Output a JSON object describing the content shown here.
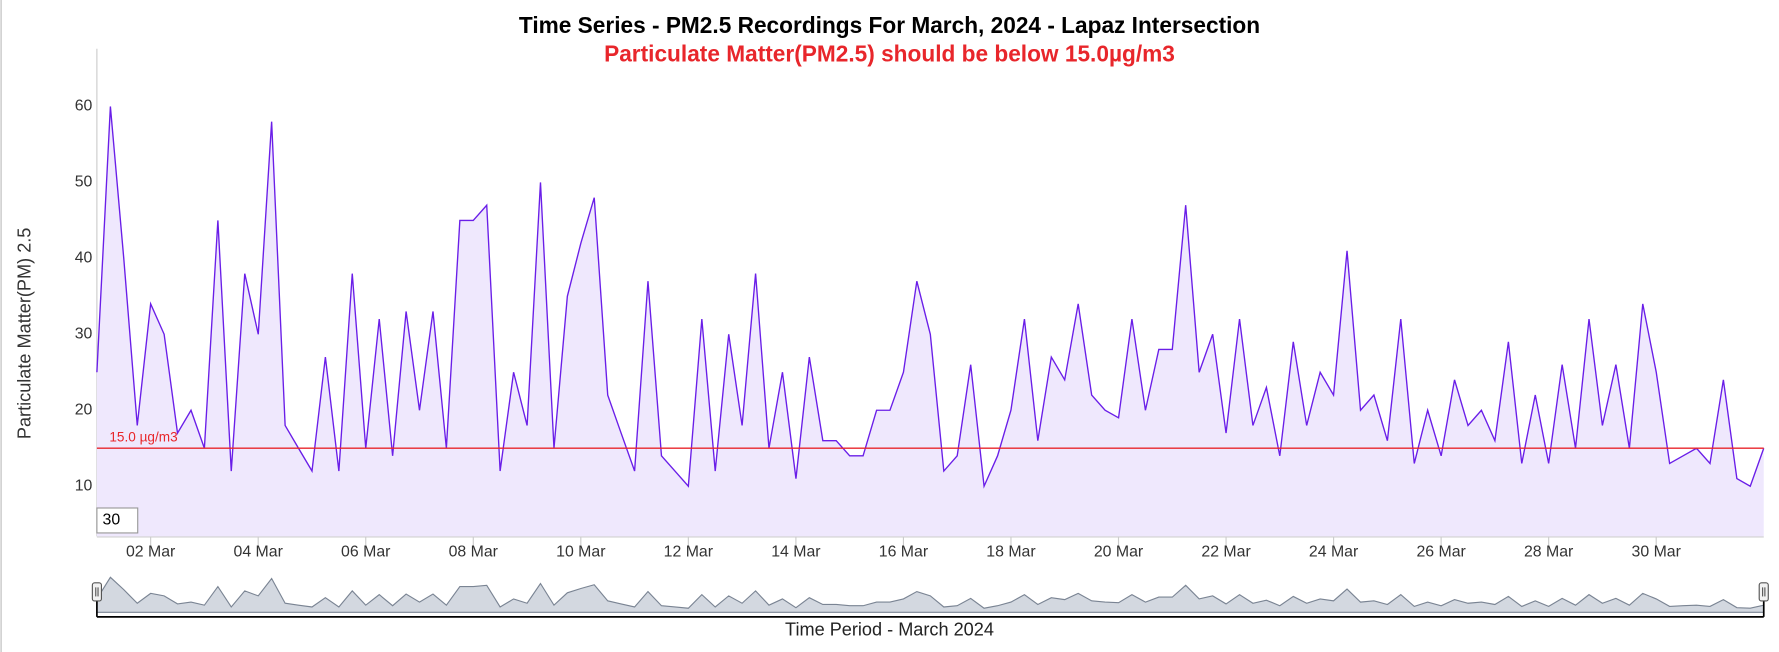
{
  "chart_data": {
    "type": "area",
    "title": "Time Series - PM2.5 Recordings For March, 2024 - Lapaz Intersection",
    "subtitle": "Particulate Matter(PM2.5) should be below 15.0µg/m3",
    "x_label": "Time Period - March 2024",
    "y_label": "Particulate Matter(PM) 2.5",
    "range_input": "30",
    "threshold": 15,
    "threshold_label": "15.0 µg/m3",
    "threshold_color": "#e8262b",
    "color": "#6a1ee8",
    "fill": "#efe8fd",
    "xlim": [
      1,
      32
    ],
    "ylim": [
      3.4,
      67.6
    ],
    "yticks": [
      10,
      20,
      30,
      40,
      50,
      60
    ],
    "xticks": [
      {
        "value": 2,
        "label": "02 Mar"
      },
      {
        "value": 4,
        "label": "04 Mar"
      },
      {
        "value": 6,
        "label": "06 Mar"
      },
      {
        "value": 8,
        "label": "08 Mar"
      },
      {
        "value": 10,
        "label": "10 Mar"
      },
      {
        "value": 12,
        "label": "12 Mar"
      },
      {
        "value": 14,
        "label": "14 Mar"
      },
      {
        "value": 16,
        "label": "16 Mar"
      },
      {
        "value": 18,
        "label": "18 Mar"
      },
      {
        "value": 20,
        "label": "20 Mar"
      },
      {
        "value": 22,
        "label": "22 Mar"
      },
      {
        "value": 24,
        "label": "24 Mar"
      },
      {
        "value": 26,
        "label": "26 Mar"
      },
      {
        "value": 28,
        "label": "28 Mar"
      },
      {
        "value": 30,
        "label": "30 Mar"
      }
    ],
    "x": [
      1,
      1.25,
      1.5,
      1.75,
      2,
      2.25,
      2.5,
      2.75,
      3,
      3.25,
      3.5,
      3.75,
      4,
      4.25,
      4.5,
      4.75,
      5,
      5.25,
      5.5,
      5.75,
      6,
      6.25,
      6.5,
      6.75,
      7,
      7.25,
      7.5,
      7.75,
      8,
      8.25,
      8.5,
      8.75,
      9,
      9.25,
      9.5,
      9.75,
      10,
      10.25,
      10.5,
      10.75,
      11,
      11.25,
      11.5,
      11.75,
      12,
      12.25,
      12.5,
      12.75,
      13,
      13.25,
      13.5,
      13.75,
      14,
      14.25,
      14.5,
      14.75,
      15,
      15.25,
      15.5,
      15.75,
      16,
      16.25,
      16.5,
      16.75,
      17,
      17.25,
      17.5,
      17.75,
      18,
      18.25,
      18.5,
      18.75,
      19,
      19.25,
      19.5,
      19.75,
      20,
      20.25,
      20.5,
      20.75,
      21,
      21.25,
      21.5,
      21.75,
      22,
      22.25,
      22.5,
      22.75,
      23,
      23.25,
      23.5,
      23.75,
      24,
      24.25,
      24.5,
      24.75,
      25,
      25.25,
      25.5,
      25.75,
      26,
      26.25,
      26.5,
      26.75,
      27,
      27.25,
      27.5,
      27.75,
      28,
      28.25,
      28.5,
      28.75,
      29,
      29.25,
      29.5,
      29.75,
      30,
      30.25,
      30.5,
      30.75,
      31,
      31.25,
      31.5,
      31.75,
      32
    ],
    "values": [
      25,
      60,
      40,
      18,
      34,
      30,
      17,
      20,
      15,
      45,
      12,
      38,
      30,
      58,
      18,
      15,
      12,
      27,
      12,
      38,
      15,
      32,
      14,
      33,
      20,
      33,
      15,
      45,
      45,
      47,
      12,
      25,
      18,
      50,
      15,
      35,
      42,
      48,
      22,
      17,
      12,
      37,
      14,
      12,
      10,
      32,
      12,
      30,
      18,
      38,
      15,
      25,
      11,
      27,
      16,
      16,
      14,
      14,
      20,
      20,
      25,
      37,
      30,
      12,
      14,
      26,
      10,
      14,
      20,
      32,
      16,
      27,
      24,
      34,
      22,
      20,
      19,
      32,
      20,
      28,
      28,
      47,
      25,
      30,
      17,
      32,
      18,
      23,
      14,
      29,
      18,
      25,
      22,
      41,
      20,
      22,
      16,
      32,
      13,
      20,
      14,
      24,
      18,
      20,
      16,
      29,
      13,
      22,
      13,
      26,
      15,
      32,
      18,
      26,
      15,
      34,
      25,
      13,
      14,
      15,
      13,
      24,
      11,
      10,
      15
    ]
  }
}
